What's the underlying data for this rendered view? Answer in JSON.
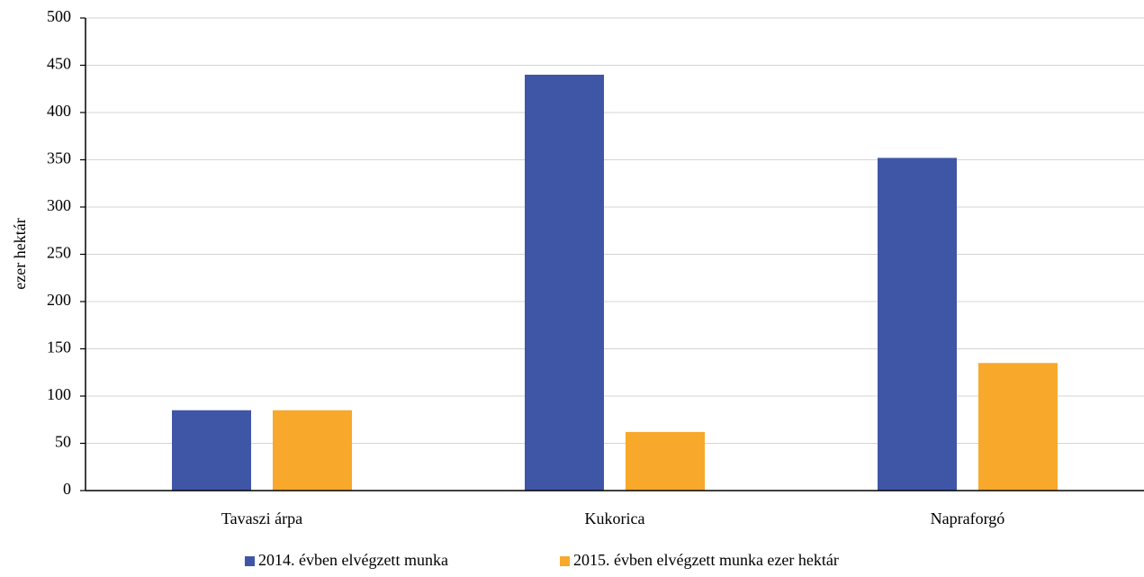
{
  "chart_data": {
    "type": "bar",
    "title": "",
    "xlabel": "",
    "ylabel": "ezer hektár",
    "ylim": [
      0,
      500
    ],
    "yticks": [
      0,
      50,
      100,
      150,
      200,
      250,
      300,
      350,
      400,
      450,
      500
    ],
    "categories": [
      "Tavaszi árpa",
      "Kukorica",
      "Napraforgó"
    ],
    "series": [
      {
        "name": "2014. évben elvégzett munka",
        "values": [
          85,
          440,
          352
        ],
        "color": "#3f56a7"
      },
      {
        "name": "2015. évben elvégzett munka ezer hektár",
        "values": [
          85,
          62,
          135
        ],
        "color": "#f8a82a"
      }
    ],
    "grid": true,
    "legend": "bottom"
  }
}
